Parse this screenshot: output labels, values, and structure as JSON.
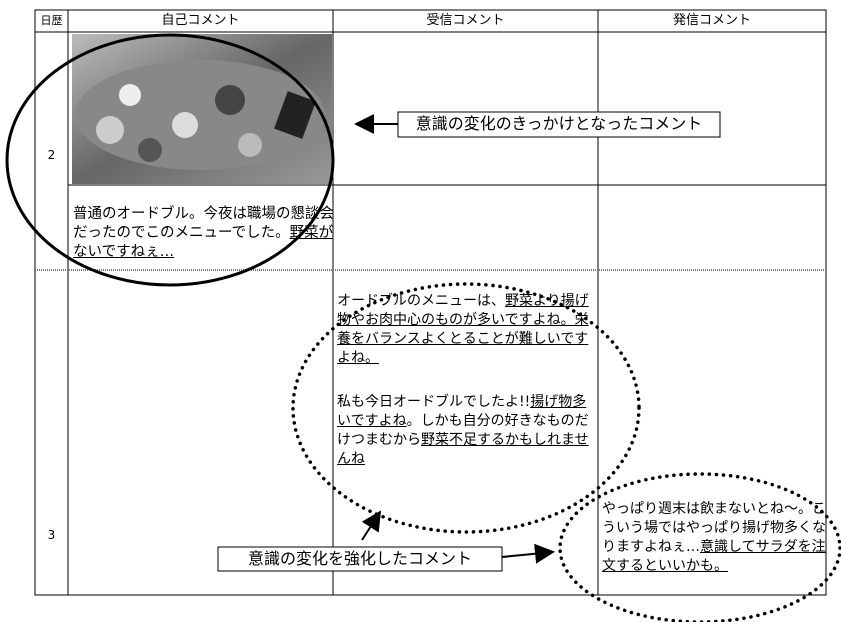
{
  "header": {
    "columns": [
      "日歴",
      "自己コメント",
      "受信コメント",
      "発信コメント"
    ]
  },
  "rows": [
    {
      "day": "2",
      "self_comment": [
        {
          "text": "普通のオードブル。今夜は職場の懇談会だったのでこのメニューでした。",
          "underline": false
        },
        {
          "text": "野菜がないですねぇ…",
          "underline": true
        }
      ]
    },
    {
      "day": "3",
      "received_comments": [
        [
          {
            "text": "オードブルのメニューは、",
            "underline": false
          },
          {
            "text": "野菜より揚げ物やお肉中心のものが多いですよね。栄養をバランスよくとることが難しいですよね。",
            "underline": true
          }
        ],
        [
          {
            "text": "私も今日オードブルでしたよ!!",
            "underline": false
          },
          {
            "text": "揚げ物多いですよね",
            "underline": true
          },
          {
            "text": "。しかも自分の好きなものだけつまむから",
            "underline": false
          },
          {
            "text": "野菜不足するかもしれませんね",
            "underline": true
          }
        ]
      ],
      "sent_comment": [
        {
          "text": "やっぱり週末は飲まないとね～。こういう場ではやっぱり揚げ物多くなりますよねぇ…",
          "underline": false
        },
        {
          "text": "意識してサラダを注文するといいかも。",
          "underline": true
        }
      ]
    }
  ],
  "annotations": [
    "意識の変化のきっかけとなったコメント",
    "意識の変化を強化したコメント"
  ]
}
